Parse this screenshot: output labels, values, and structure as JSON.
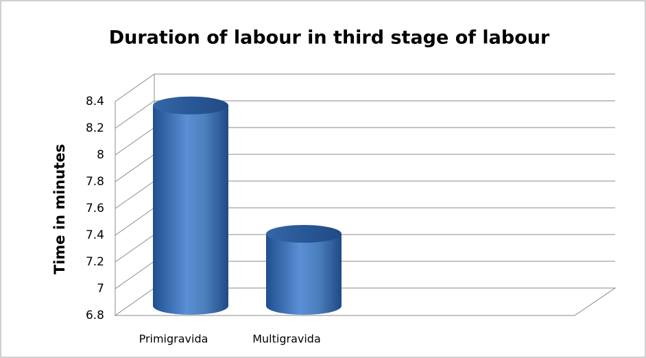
{
  "chart_data": {
    "type": "bar",
    "title": "Duration of labour in third stage of labour",
    "y_label": "Time in minutes",
    "categories": [
      "Primigravida",
      "Multigravida"
    ],
    "values": [
      8.36,
      7.4
    ],
    "color": "#4a7ebb",
    "ylim": [
      6.8,
      8.4
    ],
    "yticks": [
      6.8,
      7,
      7.2,
      7.4,
      7.6,
      7.8,
      8,
      8.2,
      8.4
    ],
    "grid": true
  }
}
